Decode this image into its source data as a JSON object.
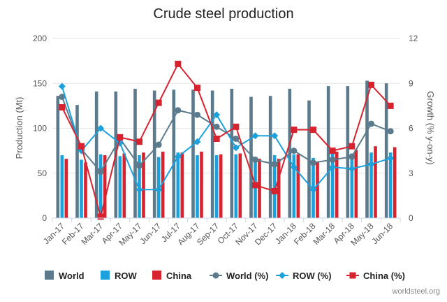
{
  "chart_data": {
    "type": "bar",
    "title": "Crude steel production",
    "ylabel": "Production (Mt)",
    "y2label": "Growth (% y-on-y)",
    "ylim": [
      0,
      200
    ],
    "y2lim": [
      0,
      12
    ],
    "yticks": [
      "0",
      "50",
      "100",
      "150",
      "200"
    ],
    "y2ticks": [
      "0",
      "3",
      "6",
      "9",
      "12"
    ],
    "grid": true,
    "legend_position": "bottom",
    "categories": [
      "Jan-17",
      "Feb-17",
      "Mar-17",
      "Apr-17",
      "May-17",
      "Jun-17",
      "Jul-17",
      "Aug-17",
      "Sep-17",
      "Oct-17",
      "Nov-17",
      "Dec-17",
      "Jan-18",
      "Feb-18",
      "Mar-18",
      "Apr-18",
      "May-18",
      "Jun-18"
    ],
    "series": [
      {
        "name": "World",
        "kind": "bar",
        "axis": "left",
        "color": "#5b7a8c",
        "values": [
          136,
          126,
          141,
          141,
          144,
          142,
          143,
          143,
          142,
          144,
          135,
          136,
          144,
          131,
          147,
          147,
          153,
          150
        ]
      },
      {
        "name": "ROW",
        "kind": "bar",
        "axis": "left",
        "color": "#1ba1dc",
        "values": [
          70,
          65,
          71,
          69,
          70,
          68,
          73,
          70,
          70,
          71,
          68,
          70,
          71,
          67,
          72,
          72,
          73,
          73
        ]
      },
      {
        "name": "China",
        "kind": "bar",
        "axis": "left",
        "color": "#d7222f",
        "values": [
          66,
          62,
          70,
          72,
          73,
          74,
          73,
          74,
          71,
          72,
          66,
          66,
          71,
          63,
          74,
          76,
          80,
          79
        ]
      },
      {
        "name": "World (%)",
        "kind": "line",
        "axis": "right",
        "color": "#5b7a8c",
        "marker": "circle",
        "values": [
          8.1,
          4.6,
          3.1,
          5.3,
          3.5,
          4.9,
          7.2,
          6.9,
          6.1,
          5.3,
          3.9,
          3.6,
          4.5,
          3.7,
          3.9,
          4.1,
          6.3,
          5.8
        ]
      },
      {
        "name": "ROW (%)",
        "kind": "line",
        "axis": "right",
        "color": "#1ba1dc",
        "marker": "diamond",
        "values": [
          8.8,
          4.5,
          6.0,
          5.0,
          1.9,
          1.9,
          4.1,
          5.1,
          6.9,
          4.7,
          5.5,
          5.5,
          3.4,
          1.9,
          3.4,
          3.3,
          3.6,
          4.0
        ]
      },
      {
        "name": "China (%)",
        "kind": "line",
        "axis": "right",
        "color": "#d7222f",
        "marker": "square",
        "values": [
          7.4,
          4.8,
          0.1,
          5.4,
          5.1,
          7.7,
          10.3,
          8.7,
          5.3,
          6.1,
          2.2,
          1.8,
          5.9,
          5.9,
          4.5,
          4.8,
          8.9,
          7.5
        ]
      }
    ],
    "legend": [
      "World",
      "ROW",
      "China",
      "World (%)",
      "ROW (%)",
      "China (%)"
    ],
    "credit": "worldsteel.org"
  }
}
